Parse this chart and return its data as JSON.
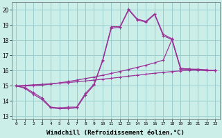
{
  "bg_color": "#cceee8",
  "grid_color": "#99cccc",
  "line_color": "#993399",
  "marker": "+",
  "markersize": 3,
  "linewidth": 0.9,
  "xlabel": "Windchill (Refroidissement éolien,°C)",
  "xlabel_fontsize": 6.5,
  "yticks": [
    13,
    14,
    15,
    16,
    17,
    18,
    19,
    20
  ],
  "xticks": [
    0,
    1,
    2,
    3,
    4,
    5,
    6,
    7,
    8,
    9,
    10,
    11,
    12,
    13,
    14,
    15,
    16,
    17,
    18,
    19,
    20,
    21,
    22,
    23
  ],
  "xlim": [
    -0.5,
    23.5
  ],
  "ylim": [
    12.8,
    20.5
  ],
  "line1_x": [
    0,
    1,
    2,
    3,
    4,
    5,
    6,
    7,
    8,
    9,
    10,
    11,
    12,
    13,
    14,
    15,
    16,
    17,
    18,
    19,
    20,
    21,
    22,
    23
  ],
  "line1_y": [
    15.0,
    14.85,
    14.45,
    14.1,
    13.55,
    13.5,
    13.5,
    13.55,
    14.4,
    15.05,
    16.65,
    18.8,
    18.85,
    20.0,
    19.35,
    19.2,
    19.7,
    18.3,
    18.05,
    16.1,
    16.1,
    16.05,
    16.05,
    16.0
  ],
  "line2_x": [
    0,
    1,
    2,
    3,
    4,
    5,
    6,
    7,
    8,
    9,
    10,
    11,
    12,
    13,
    14,
    15,
    16,
    17,
    18,
    19,
    20,
    21,
    22,
    23
  ],
  "line2_y": [
    15.0,
    15.03,
    15.07,
    15.1,
    15.14,
    15.18,
    15.22,
    15.27,
    15.32,
    15.38,
    15.44,
    15.5,
    15.57,
    15.64,
    15.7,
    15.77,
    15.83,
    15.89,
    15.94,
    15.99,
    16.03,
    16.04,
    16.04,
    16.0
  ],
  "line3_x": [
    0,
    1,
    2,
    3,
    4,
    5,
    6,
    7,
    8,
    9,
    10,
    11,
    12,
    13,
    14,
    15,
    16,
    17,
    18,
    19,
    20,
    21,
    22,
    23
  ],
  "line3_y": [
    15.0,
    14.9,
    14.55,
    14.2,
    13.6,
    13.55,
    13.6,
    13.6,
    14.5,
    15.1,
    16.7,
    18.9,
    18.9,
    20.05,
    19.4,
    19.25,
    19.75,
    18.4,
    18.1,
    16.15,
    16.1,
    16.1,
    16.05,
    16.0
  ],
  "line4_x": [
    0,
    1,
    2,
    3,
    4,
    5,
    6,
    7,
    8,
    9,
    10,
    11,
    12,
    13,
    14,
    15,
    16,
    17,
    18,
    19,
    20,
    21,
    22,
    23
  ],
  "line4_y": [
    15.0,
    15.0,
    15.0,
    15.05,
    15.12,
    15.2,
    15.28,
    15.38,
    15.48,
    15.58,
    15.7,
    15.82,
    15.95,
    16.08,
    16.22,
    16.36,
    16.52,
    16.7,
    18.05,
    16.15,
    16.1,
    16.05,
    16.0,
    16.0
  ]
}
